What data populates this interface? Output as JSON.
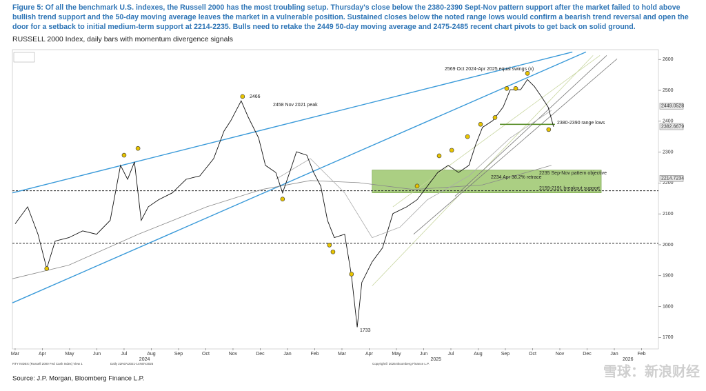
{
  "chart_data": {
    "type": "line",
    "title": [
      "Figure 5: Of all the benchmark U.S. indexes, the Russell 2000 has the most troubling setup. Thursday's close below the 2380-2390 Sept-Nov pattern support after the market failed to hold above",
      "bullish trend support and the 50-day moving average leaves the market in a vulnerable position. Sustained closes below the noted range lows would confirm a bearish trend reversal and open the",
      "door for a setback to initial medium-term support at 2214-2235. Bulls need to retake the 2449 50-day moving average and 2475-2485 recent chart pivots to get back on solid ground."
    ],
    "subtitle": "RUSSELL 2000 Index, daily bars with momentum divergence signals",
    "source": "Source: J.P. Morgan, Bloomberg Finance L.P.",
    "footer_notes": [
      "RTY INDEX (Russell 2000 Fed Cash Index) View 1",
      "Daily 22NOV2021-14NOV2025",
      "Copyright© 2025 Bloomberg Finance L.P."
    ],
    "watermark": "雪球：新浪财经",
    "xlim": [
      -0.1,
      23.62
    ],
    "ylim": [
      1665,
      2625
    ],
    "yticks": [
      1700,
      1800,
      1900,
      2000,
      2100,
      2200,
      2300,
      2400,
      2500,
      2600
    ],
    "xticks": [
      {
        "value": 0,
        "label": "Mar"
      },
      {
        "value": 1,
        "label": "Apr"
      },
      {
        "value": 2,
        "label": "May"
      },
      {
        "value": 3,
        "label": "Jun"
      },
      {
        "value": 4,
        "label": "Jul"
      },
      {
        "value": 5,
        "label": "Aug"
      },
      {
        "value": 6,
        "label": "Sep"
      },
      {
        "value": 7,
        "label": "Oct"
      },
      {
        "value": 8,
        "label": "Nov"
      },
      {
        "value": 9,
        "label": "Dec"
      },
      {
        "value": 10,
        "label": "Jan"
      },
      {
        "value": 11,
        "label": "Feb"
      },
      {
        "value": 12,
        "label": "Mar"
      },
      {
        "value": 13,
        "label": "Apr"
      },
      {
        "value": 14,
        "label": "May"
      },
      {
        "value": 15,
        "label": "Jun"
      },
      {
        "value": 16,
        "label": "Jul"
      },
      {
        "value": 17,
        "label": "Aug"
      },
      {
        "value": 18,
        "label": "Sep"
      },
      {
        "value": 19,
        "label": "Oct"
      },
      {
        "value": 20,
        "label": "Nov"
      },
      {
        "value": 21,
        "label": "Dec"
      },
      {
        "value": 22,
        "label": "Jan"
      },
      {
        "value": 23,
        "label": "Feb"
      }
    ],
    "year_labels": [
      {
        "value": 4.75,
        "label": "2024"
      },
      {
        "value": 15.45,
        "label": "2025"
      },
      {
        "value": 22.5,
        "label": "2026"
      }
    ],
    "series": [
      {
        "color": "#111111",
        "x": [
          0,
          0.46,
          0.84,
          1.16,
          1.47,
          1.97,
          2.48,
          2.99,
          3.49,
          3.87,
          4.13,
          4.38,
          4.63,
          4.89,
          5.27,
          5.77,
          6.28,
          6.78,
          7.29,
          7.67,
          7.92,
          8.3,
          8.56,
          8.94,
          9.19,
          9.57,
          9.82,
          10.08,
          10.33,
          10.71,
          10.96,
          11.22,
          11.47,
          11.72,
          12.1,
          12.35,
          12.56,
          12.73,
          13.11,
          13.49,
          13.87,
          14.38,
          14.76,
          15.14,
          15.52,
          15.9,
          16.28,
          16.66,
          16.91,
          17.16,
          17.54,
          17.92,
          18.18,
          18.56,
          18.81,
          19.06,
          19.32,
          19.57,
          19.77
        ],
        "values": [
          2068,
          2123,
          2034,
          1923,
          2012,
          2023,
          2045,
          2034,
          2079,
          2257,
          2212,
          2268,
          2079,
          2123,
          2146,
          2168,
          2212,
          2223,
          2279,
          2368,
          2402,
          2466,
          2413,
          2346,
          2257,
          2234,
          2168,
          2234,
          2301,
          2290,
          2234,
          2190,
          2079,
          2023,
          2034,
          1900,
          1733,
          1878,
          1945,
          1990,
          2101,
          2123,
          2146,
          2190,
          2234,
          2257,
          2234,
          2257,
          2324,
          2380,
          2402,
          2446,
          2502,
          2502,
          2535,
          2513,
          2480,
          2446,
          2382
        ]
      }
    ],
    "moving_averages": [
      {
        "color": "#888888",
        "x": [
          -0.1,
          1.97,
          4.52,
          7.04,
          9.06,
          10.84,
          12.61,
          14.63,
          17.16,
          19.69
        ],
        "values": [
          1890,
          1934,
          2034,
          2123,
          2179,
          2208,
          2201,
          2179,
          2194,
          2257
        ]
      },
      {
        "color": "#aaaaaa",
        "x": [
          9.57,
          10.84,
          12.1,
          13.11,
          14.13,
          15.14,
          16.66,
          18.18,
          19.69
        ],
        "values": [
          2212,
          2279,
          2168,
          2023,
          2057,
          2146,
          2223,
          2346,
          2435
        ]
      }
    ],
    "channel_lines": [
      {
        "color": "#3a9ad9",
        "x": [
          -0.1,
          20.46
        ],
        "values": [
          2168,
          2624
        ]
      },
      {
        "color": "#3a9ad9",
        "x": [
          -0.1,
          20.96
        ],
        "values": [
          1812,
          2624
        ]
      },
      {
        "color": "#c8d6a0",
        "x": [
          13.11,
          21.22
        ],
        "values": [
          1867,
          2613
        ]
      },
      {
        "color": "#c8d6a0",
        "x": [
          13.87,
          21.47
        ],
        "values": [
          2123,
          2613
        ]
      },
      {
        "color": "#777777",
        "x": [
          16.15,
          21.72
        ],
        "values": [
          2157,
          2613
        ]
      },
      {
        "color": "#777777",
        "x": [
          14.63,
          22.1
        ],
        "values": [
          2034,
          2602
        ]
      }
    ],
    "support_lines": [
      {
        "color": "#5a8f2a",
        "x": [
          17.8,
          19.82
        ],
        "values": [
          2390,
          2390
        ]
      }
    ],
    "reference_lines": [
      2175,
      2005
    ],
    "highlight_band": {
      "color": "#8fbf5a",
      "x": [
        13.11,
        21.52
      ],
      "values": [
        2168,
        2242
      ]
    },
    "signals": {
      "color": "#e8c400",
      "x": [
        1.16,
        4.0,
        4.51,
        8.35,
        9.82,
        11.54,
        11.67,
        12.35,
        14.76,
        15.57,
        16.03,
        16.61,
        17.09,
        17.62,
        18.05,
        18.38,
        18.81,
        19.59
      ],
      "values": [
        1923,
        2290,
        2312,
        2480,
        2148,
        1999,
        1977,
        1905,
        2190,
        2288,
        2306,
        2350,
        2390,
        2412,
        2506,
        2506,
        2555,
        2373
      ]
    },
    "axis_value_labels": [
      {
        "value": 2449.0528,
        "label": "2449.0528"
      },
      {
        "value": 2382.6679,
        "label": "2382.6679"
      },
      {
        "value": 2214.7234,
        "label": "2214.7234"
      }
    ],
    "annotations": [
      "2569 Oct 2024-Apr 2025 equal swings (x)",
      "2466",
      "2458 Nov 2021 peak",
      "2380-2390 range lows",
      "2235 Sep-Nov pattern objective",
      "2234 Apr 38.2% retrace",
      "2159-2191 breakout support",
      "1733"
    ]
  }
}
